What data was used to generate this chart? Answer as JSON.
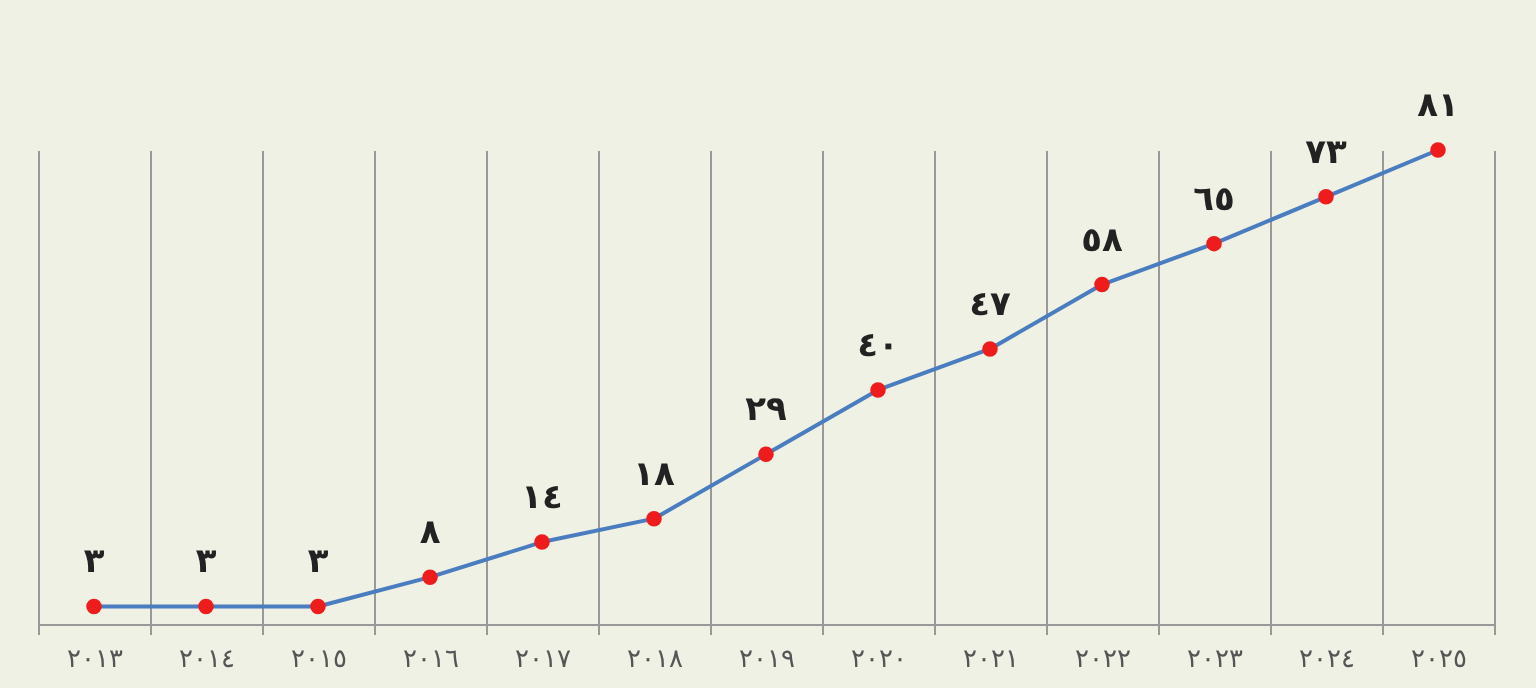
{
  "chart_data": {
    "type": "line",
    "categories": [
      "٢٠١٣",
      "٢٠١٤",
      "٢٠١٥",
      "٢٠١٦",
      "٢٠١٧",
      "٢٠١٨",
      "٢٠١٩",
      "٢٠٢٠",
      "٢٠٢١",
      "٢٠٢٢",
      "٢٠٢٣",
      "٢٠٢٤",
      "٢٠٢٥"
    ],
    "series": [
      {
        "color": "#4a7cc0",
        "values": [
          3,
          3,
          3,
          8,
          14,
          18,
          29,
          40,
          47,
          58,
          65,
          73,
          81
        ],
        "value_labels": [
          "٣",
          "٣",
          "٣",
          "٨",
          "١٤",
          "١٨",
          "٢٩",
          "٤٠",
          "٤٧",
          "٥٨",
          "٦٥",
          "٧٣",
          "٨١"
        ]
      }
    ],
    "marker": "circle",
    "grid": "x"
  }
}
